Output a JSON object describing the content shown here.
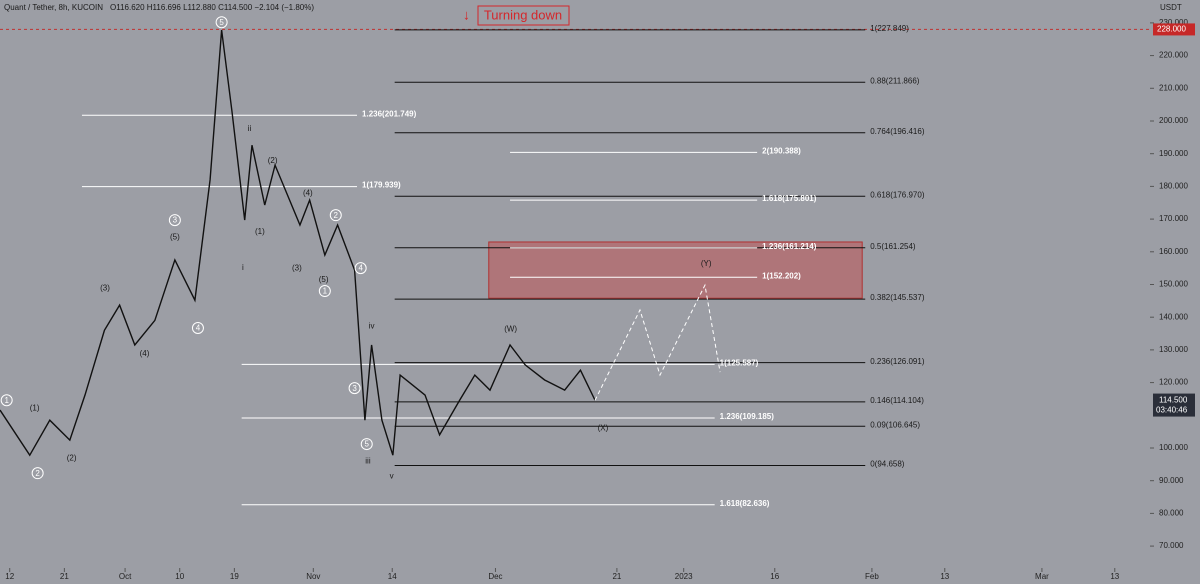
{
  "chart_data": {
    "type": "price",
    "header": "Quant / Tether, 8h, KUCOIN",
    "ohlc": "O116.620 H116.696 L112.880 C114.500 −2.104 (−1.80%)",
    "title": "Turning down",
    "unit": "USDT",
    "xlim": [
      -1.6,
      187.8
    ],
    "ylim": [
      63.3,
      237
    ],
    "xticks": [
      {
        "value": 0,
        "label": "12"
      },
      {
        "value": 9,
        "label": "21"
      },
      {
        "value": 19,
        "label": "Oct"
      },
      {
        "value": 28,
        "label": "10"
      },
      {
        "value": 37,
        "label": "19"
      },
      {
        "value": 50,
        "label": "Nov"
      },
      {
        "value": 63,
        "label": "14"
      },
      {
        "value": 80,
        "label": "Dec"
      },
      {
        "value": 100,
        "label": "21"
      },
      {
        "value": 111,
        "label": "2023"
      },
      {
        "value": 126,
        "label": "16"
      },
      {
        "value": 142,
        "label": "Feb"
      },
      {
        "value": 154,
        "label": "13"
      },
      {
        "value": 170,
        "label": "Mar"
      },
      {
        "value": 182,
        "label": "13"
      }
    ],
    "yticks": [
      {
        "value": 70,
        "label": "70.000"
      },
      {
        "value": 80,
        "label": "80.000"
      },
      {
        "value": 90,
        "label": "90.000"
      },
      {
        "value": 100,
        "label": "100.000"
      },
      {
        "value": 120,
        "label": "120.000"
      },
      {
        "value": 130,
        "label": "130.000"
      },
      {
        "value": 140,
        "label": "140.000"
      },
      {
        "value": 150,
        "label": "150.000"
      },
      {
        "value": 160,
        "label": "160.000"
      },
      {
        "value": 170,
        "label": "170.000"
      },
      {
        "value": 180,
        "label": "180.000"
      },
      {
        "value": 190,
        "label": "190.000"
      },
      {
        "value": 200,
        "label": "200.000"
      },
      {
        "value": 210,
        "label": "210.000"
      },
      {
        "value": 220,
        "label": "220.000"
      },
      {
        "value": 230,
        "label": "230.000"
      }
    ],
    "series": [
      {
        "color": "#111111",
        "dashed": false,
        "x": [
          -1.6,
          3.3,
          6.6,
          9.9,
          12.4,
          15.6,
          18.1,
          20.6,
          23.9,
          27.2,
          30.5,
          33,
          34.9,
          36.6,
          38.7,
          39.9,
          42,
          43.7,
          47.8,
          49.4,
          51.9,
          54,
          56.8,
          58.5,
          59.6,
          61.3,
          63.1,
          64.3,
          68.4,
          70.8,
          74.1,
          76.6,
          79.1,
          82.4,
          84.9,
          88.1,
          91.4,
          94,
          96.4
        ],
        "values": [
          111.6,
          97.8,
          108.5,
          102.4,
          116.2,
          136,
          143.7,
          131.5,
          139,
          157.5,
          145.2,
          182,
          227.8,
          203,
          169.7,
          192.6,
          174.3,
          186.5,
          168.2,
          175.8,
          159,
          168.2,
          154.4,
          108.5,
          131.5,
          108.5,
          97.8,
          122.3,
          116.2,
          104,
          114.6,
          122.3,
          117.7,
          131.5,
          125.4,
          120.8,
          117.7,
          123.8,
          114.6
        ]
      },
      {
        "color": "#ffffff",
        "dashed": true,
        "x": [
          96.4,
          103.8,
          107.1,
          114.5,
          117
        ],
        "values": [
          114.6,
          142.2,
          122.3,
          149.8,
          123.2
        ]
      }
    ],
    "level_sets": [
      {
        "color": "#111111",
        "from": 63.4,
        "to": 140.9,
        "levels": [
          {
            "value": 227.849,
            "label": "1(227.849)"
          },
          {
            "value": 211.866,
            "label": "0.88(211.866)"
          },
          {
            "value": 196.416,
            "label": "0.764(196.416)"
          },
          {
            "value": 176.97,
            "label": "0.618(176.970)"
          },
          {
            "value": 161.254,
            "label": "0.5(161.254)"
          },
          {
            "value": 145.537,
            "label": "0.382(145.537)"
          },
          {
            "value": 126.091,
            "label": "0.236(126.091)"
          },
          {
            "value": 114.104,
            "label": "0.146(114.104)"
          },
          {
            "value": 106.645,
            "label": "0.09(106.645)"
          },
          {
            "value": 94.658,
            "label": "0(94.658)"
          }
        ]
      },
      {
        "color": "#ffffff",
        "from": 11.9,
        "to": 57.2,
        "levels": [
          {
            "value": 201.749,
            "label": "1.236(201.749)"
          },
          {
            "value": 179.939,
            "label": "1(179.939)"
          }
        ]
      },
      {
        "color": "#ffffff",
        "from": 38.2,
        "to": 116.1,
        "levels": [
          {
            "value": 125.587,
            "label": "1(125.587)"
          },
          {
            "value": 109.185,
            "label": "1.236(109.185)"
          },
          {
            "value": 82.636,
            "label": "1.618(82.636)"
          }
        ]
      },
      {
        "color": "#ffffff",
        "from": 82.4,
        "to": 123.1,
        "levels": [
          {
            "value": 190.388,
            "label": "2(190.388)"
          },
          {
            "value": 175.801,
            "label": "1.618(175.801)"
          },
          {
            "value": 161.214,
            "label": "1.236(161.214)"
          },
          {
            "value": 152.202,
            "label": "1(152.202)"
          }
        ]
      }
    ],
    "zone": {
      "from": 78.9,
      "to": 140.4,
      "low": 145.8,
      "high": 163.0,
      "color": "#b5676b"
    },
    "alert": {
      "value": 228,
      "label": "228.000"
    },
    "last_price": {
      "value": 114.5,
      "label": "114.500",
      "countdown": "03:40:46"
    },
    "annotations": [
      {
        "text": "1",
        "x": -0.5,
        "y": 114.6,
        "circled": true
      },
      {
        "text": "2",
        "x": 4.6,
        "y": 92.3,
        "circled": true
      },
      {
        "text": "(1)",
        "x": 4.1,
        "y": 112.2,
        "circled": false
      },
      {
        "text": "(2)",
        "x": 10.2,
        "y": 96.9,
        "circled": false
      },
      {
        "text": "(3)",
        "x": 15.7,
        "y": 148.9,
        "circled": false
      },
      {
        "text": "(4)",
        "x": 22.2,
        "y": 129,
        "circled": false
      },
      {
        "text": "(5)",
        "x": 27.2,
        "y": 164.5,
        "circled": false
      },
      {
        "text": "3",
        "x": 27.2,
        "y": 169.7,
        "circled": true
      },
      {
        "text": "4",
        "x": 31,
        "y": 136.7,
        "circled": true
      },
      {
        "text": "5",
        "x": 34.9,
        "y": 230.2,
        "circled": true
      },
      {
        "text": "ii",
        "x": 39.5,
        "y": 197.8,
        "circled": false
      },
      {
        "text": "i",
        "x": 38.4,
        "y": 155.3,
        "circled": false
      },
      {
        "text": "(1)",
        "x": 41.2,
        "y": 166.3,
        "circled": false
      },
      {
        "text": "(2)",
        "x": 43.3,
        "y": 188,
        "circled": false
      },
      {
        "text": "(3)",
        "x": 47.3,
        "y": 155,
        "circled": false
      },
      {
        "text": "(4)",
        "x": 49.1,
        "y": 178,
        "circled": false
      },
      {
        "text": "(5)",
        "x": 51.7,
        "y": 151.6,
        "circled": false
      },
      {
        "text": "1",
        "x": 51.9,
        "y": 148,
        "circled": true
      },
      {
        "text": "2",
        "x": 53.7,
        "y": 171.2,
        "circled": true
      },
      {
        "text": "4",
        "x": 57.8,
        "y": 155,
        "circled": true
      },
      {
        "text": "3",
        "x": 56.8,
        "y": 118.3,
        "circled": true
      },
      {
        "text": "iv",
        "x": 59.6,
        "y": 137.3,
        "circled": false
      },
      {
        "text": "5",
        "x": 58.8,
        "y": 101.2,
        "circled": true
      },
      {
        "text": "iii",
        "x": 59,
        "y": 96,
        "circled": false
      },
      {
        "text": "v",
        "x": 62.9,
        "y": 91.4,
        "circled": false
      },
      {
        "text": "(W)",
        "x": 82.5,
        "y": 136.4,
        "circled": false
      },
      {
        "text": "(X)",
        "x": 97.7,
        "y": 106.1,
        "circled": false
      },
      {
        "text": "(Y)",
        "x": 114.7,
        "y": 156.5,
        "circled": false
      }
    ]
  }
}
